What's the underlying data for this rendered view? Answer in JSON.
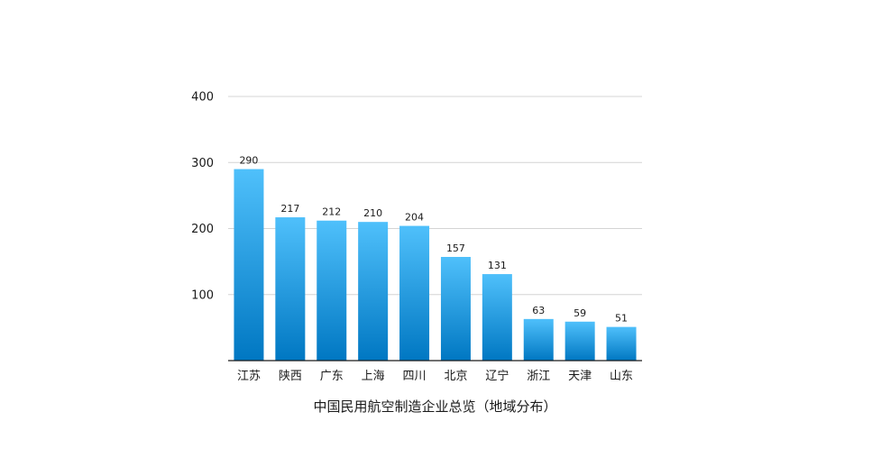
{
  "chart_data": {
    "type": "bar",
    "title": "中国民用航空制造企业总览（地域分布）",
    "xlabel": "",
    "ylabel": "",
    "categories": [
      "江苏",
      "陕西",
      "广东",
      "上海",
      "四川",
      "北京",
      "辽宁",
      "浙江",
      "天津",
      "山东"
    ],
    "values": [
      290,
      217,
      212,
      210,
      204,
      157,
      131,
      63,
      59,
      51
    ],
    "ylim": [
      0,
      400
    ],
    "yticks": [
      100,
      200,
      300,
      400
    ],
    "grid": true,
    "legend": "none",
    "bar_color_top": "#4fc0fb",
    "bar_color_bottom": "#0077c2"
  }
}
